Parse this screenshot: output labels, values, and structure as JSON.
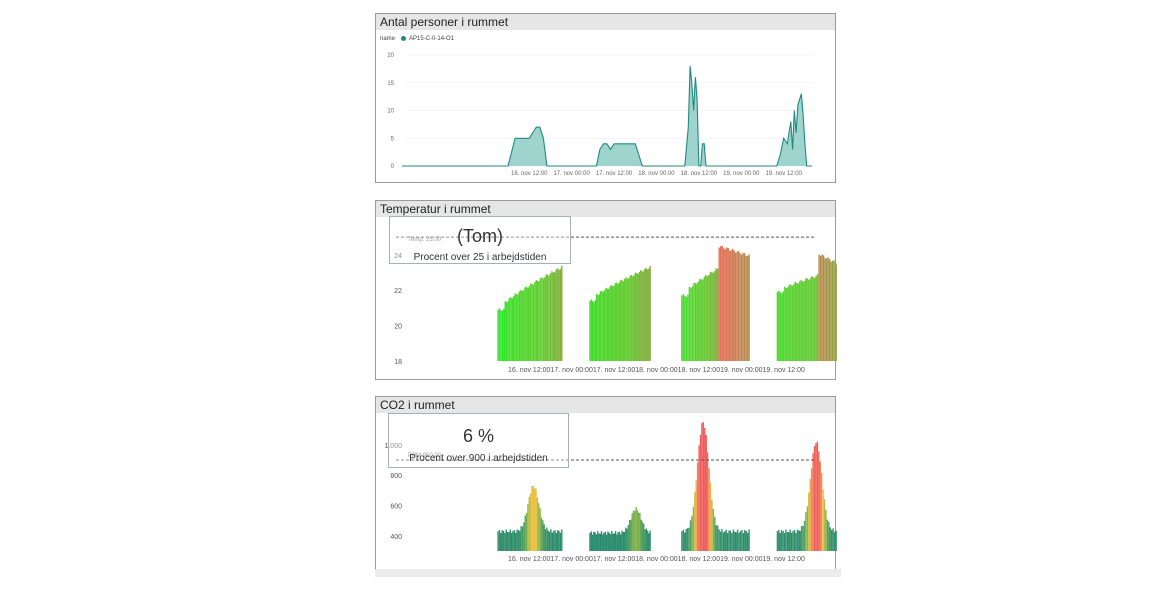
{
  "panels": {
    "people": {
      "title": "Antal personer i rummet",
      "legend_title": "name",
      "legend_item": "AP15-C-0-14-O1",
      "legend_color": "#1f8a80"
    },
    "temp": {
      "title": "Temperatur i rummet",
      "card_value": "(Tom)",
      "card_label": "Procent over 25 i arbejdstiden",
      "ref_label": "Temp. 25,00"
    },
    "co2": {
      "title": "CO2 i rummet",
      "card_value": "6 %",
      "card_label": "Procent over 900 i arbejdstiden",
      "ref_label": "PPM 900,00"
    }
  },
  "chart_data": [
    {
      "type": "area",
      "title": "Antal personer i rummet",
      "x_ticks": [
        "16. nov 12:00",
        "17. nov 00:00",
        "17. nov 12:00",
        "18. nov 00:00",
        "18. nov 12:00",
        "19. nov 00:00",
        "19. nov 12:00"
      ],
      "y_ticks": [
        0,
        5,
        10,
        15,
        20
      ],
      "ylim": [
        0,
        20
      ],
      "legend": "top-left",
      "series_color": "#1f8a80",
      "x_hours": [
        0,
        30,
        32,
        34,
        36,
        37,
        38,
        39,
        40,
        41,
        42,
        55,
        56,
        57,
        58,
        59,
        60,
        62,
        64,
        66,
        68,
        80,
        81,
        81.5,
        82,
        82.5,
        83,
        83.5,
        84,
        84.5,
        85,
        85.5,
        86,
        86.5,
        87,
        106,
        107,
        108,
        109,
        110,
        110.5,
        111,
        111.5,
        112,
        112.5,
        113,
        113.5,
        114,
        114.5,
        115,
        116
      ],
      "values": [
        0,
        0,
        5,
        5,
        5,
        6,
        7,
        7,
        5,
        0,
        0,
        0,
        3,
        4,
        4,
        3,
        4,
        4,
        4,
        4,
        0,
        0,
        7,
        18,
        15,
        10,
        16,
        12,
        0,
        0,
        4,
        4,
        0,
        0,
        0,
        0,
        2,
        5,
        4,
        8,
        3,
        10,
        6,
        11,
        12,
        13,
        9,
        4,
        0,
        0,
        0
      ]
    },
    {
      "type": "bar",
      "title": "Temperatur i rummet",
      "x_ticks": [
        "16. nov 12:00",
        "17. nov 00:00",
        "17. nov 12:00",
        "18. nov 00:00",
        "18. nov 12:00",
        "19. nov 00:00",
        "19. nov 12:00"
      ],
      "y_ticks": [
        18,
        20,
        22,
        24
      ],
      "ylim": [
        18,
        25.8
      ],
      "reference_line": 25,
      "segments": [
        {
          "start": 27,
          "end": 45,
          "from": 20.9,
          "to": 23.3
        },
        {
          "start": 53,
          "end": 70,
          "from": 21.4,
          "to": 23.3
        },
        {
          "start": 79,
          "end": 98,
          "from": 21.7,
          "to": 24.2
        },
        {
          "start": 106,
          "end": 125,
          "from": 21.9,
          "to": 23.3
        }
      ]
    },
    {
      "type": "bar",
      "title": "CO2 i rummet",
      "x_ticks": [
        "16. nov 12:00",
        "17. nov 00:00",
        "17. nov 12:00",
        "18. nov 00:00",
        "18. nov 12:00",
        "19. nov 00:00",
        "19. nov 12:00"
      ],
      "y_ticks": [
        400,
        600,
        800,
        1000
      ],
      "y_tick_labels": [
        "400",
        "600",
        "800",
        "1.000"
      ],
      "ylim": [
        300,
        1170
      ],
      "reference_line": 900,
      "segments": [
        {
          "start": 27,
          "end": 45,
          "base": 430,
          "peak": 730,
          "peak_at": 37
        },
        {
          "start": 53,
          "end": 70,
          "base": 420,
          "peak": 580,
          "peak_at": 66
        },
        {
          "start": 79,
          "end": 98,
          "base": 430,
          "peak": 1150,
          "peak_at": 85
        },
        {
          "start": 106,
          "end": 125,
          "base": 430,
          "peak": 1020,
          "peak_at": 117
        }
      ]
    }
  ]
}
